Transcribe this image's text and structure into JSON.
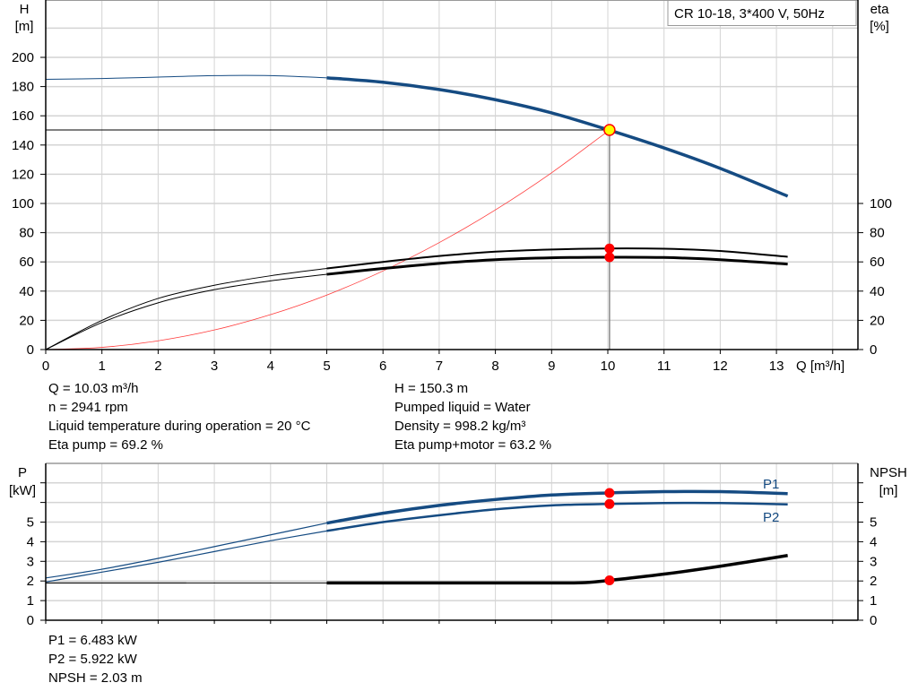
{
  "colors": {
    "head": "#154b82",
    "power": "#154b82",
    "efficiency": "#000000",
    "npsh": "#000000",
    "system": "#ff3b3b",
    "marker": "#ff0000",
    "duty_point": "#ffff00",
    "grid": "#d4d4d4"
  },
  "chart_data": [
    {
      "type": "line",
      "legend_box": "CR 10-18, 3*400 V, 50Hz",
      "legend_placement": "top-right",
      "grid": true,
      "xlabel": "Q [m³/h]",
      "ylabel_left": [
        "H",
        "[m]"
      ],
      "ylabel_right": [
        "eta",
        "[%]"
      ],
      "xlim": [
        0,
        14.5
      ],
      "ylim": [
        0,
        240
      ],
      "xticks": [
        0,
        1,
        2,
        3,
        4,
        5,
        6,
        7,
        8,
        9,
        10,
        11,
        12,
        13
      ],
      "yticks_left": [
        0,
        20,
        40,
        60,
        80,
        100,
        120,
        140,
        160,
        180,
        200
      ],
      "yticks_right": [
        0,
        20,
        40,
        60,
        80,
        100
      ],
      "series": [
        {
          "key": "head",
          "x": [
            0,
            1,
            2,
            3,
            4,
            5,
            6,
            7,
            8,
            9,
            10,
            11,
            12,
            13.2
          ],
          "y": [
            185,
            185.5,
            186.5,
            187.5,
            187.5,
            186,
            183,
            178,
            171,
            162,
            150.5,
            138,
            124,
            105
          ],
          "thick_from": 5
        },
        {
          "key": "eta_pump",
          "x": [
            0,
            1,
            2,
            3,
            4,
            5,
            6,
            7,
            8,
            9,
            10,
            11,
            12,
            13.2
          ],
          "y": [
            0,
            20,
            35,
            44,
            50.5,
            55.5,
            60,
            64,
            67,
            68.5,
            69.2,
            69,
            67.5,
            63.5
          ],
          "thick_from": 5
        },
        {
          "key": "eta_pump_motor",
          "x": [
            0,
            1,
            2,
            3,
            4,
            5,
            6,
            7,
            8,
            9,
            10,
            11,
            12,
            13.2
          ],
          "y": [
            0,
            18.5,
            32,
            41,
            47,
            51.5,
            55.5,
            59,
            61.5,
            62.8,
            63.2,
            63,
            61.5,
            58.5
          ],
          "thick_from": 5
        },
        {
          "key": "system",
          "x": [
            0,
            1,
            2,
            3,
            4,
            5,
            6,
            7,
            8,
            9,
            10.03
          ],
          "y": [
            0,
            1.5,
            6,
            13.4,
            23.9,
            37.3,
            53.8,
            73.2,
            95.6,
            121,
            150.3
          ]
        }
      ],
      "duty_point": {
        "Q": 10.03,
        "H": 150.3,
        "eta_pump": 69.2,
        "eta_pump_motor": 63.2
      }
    },
    {
      "type": "line",
      "grid": true,
      "ylabel_left": [
        "P",
        "[kW]"
      ],
      "ylabel_right": [
        "NPSH",
        "[m]"
      ],
      "xlim": [
        0,
        14.5
      ],
      "ylim": [
        0,
        8
      ],
      "yticks_left": [
        0,
        1,
        2,
        3,
        4,
        5
      ],
      "yticks_right": [
        0,
        1,
        2,
        3,
        4,
        5
      ],
      "series": [
        {
          "key": "P1",
          "name": "P1",
          "x": [
            0,
            1,
            2,
            3,
            4,
            5,
            6,
            7,
            8,
            9,
            10,
            11,
            12,
            13.2
          ],
          "y": [
            2.15,
            2.6,
            3.15,
            3.75,
            4.35,
            4.95,
            5.45,
            5.85,
            6.15,
            6.38,
            6.483,
            6.55,
            6.55,
            6.45
          ],
          "thick_from": 5
        },
        {
          "key": "P2",
          "name": "P2",
          "x": [
            0,
            1,
            2,
            3,
            4,
            5,
            6,
            7,
            8,
            9,
            10,
            11,
            12,
            13.2
          ],
          "y": [
            1.95,
            2.45,
            2.95,
            3.5,
            4.05,
            4.55,
            5.0,
            5.35,
            5.65,
            5.85,
            5.922,
            5.97,
            5.97,
            5.9
          ],
          "thick_from": 5
        },
        {
          "key": "NPSH",
          "x": [
            0,
            2,
            4,
            5,
            7,
            9,
            9.6,
            10.03,
            11,
            12,
            13.2
          ],
          "y": [
            1.9,
            1.9,
            1.9,
            1.9,
            1.9,
            1.9,
            1.92,
            2.03,
            2.35,
            2.75,
            3.3
          ],
          "thick_from": 5
        }
      ],
      "duty_point": {
        "Q": 10.03,
        "P1": 6.483,
        "P2": 5.922,
        "NPSH": 2.03
      }
    }
  ],
  "info_top_left": [
    "Q = 10.03 m³/h",
    "n = 2941 rpm",
    "Liquid temperature during operation = 20 °C",
    "Eta pump = 69.2 %"
  ],
  "info_top_right": [
    "H = 150.3 m",
    "Pumped liquid = Water",
    "Density = 998.2 kg/m³",
    "Eta pump+motor = 63.2 %"
  ],
  "info_bottom": [
    "P1 = 6.483 kW",
    "P2 = 5.922 kW",
    "NPSH = 2.03 m"
  ]
}
